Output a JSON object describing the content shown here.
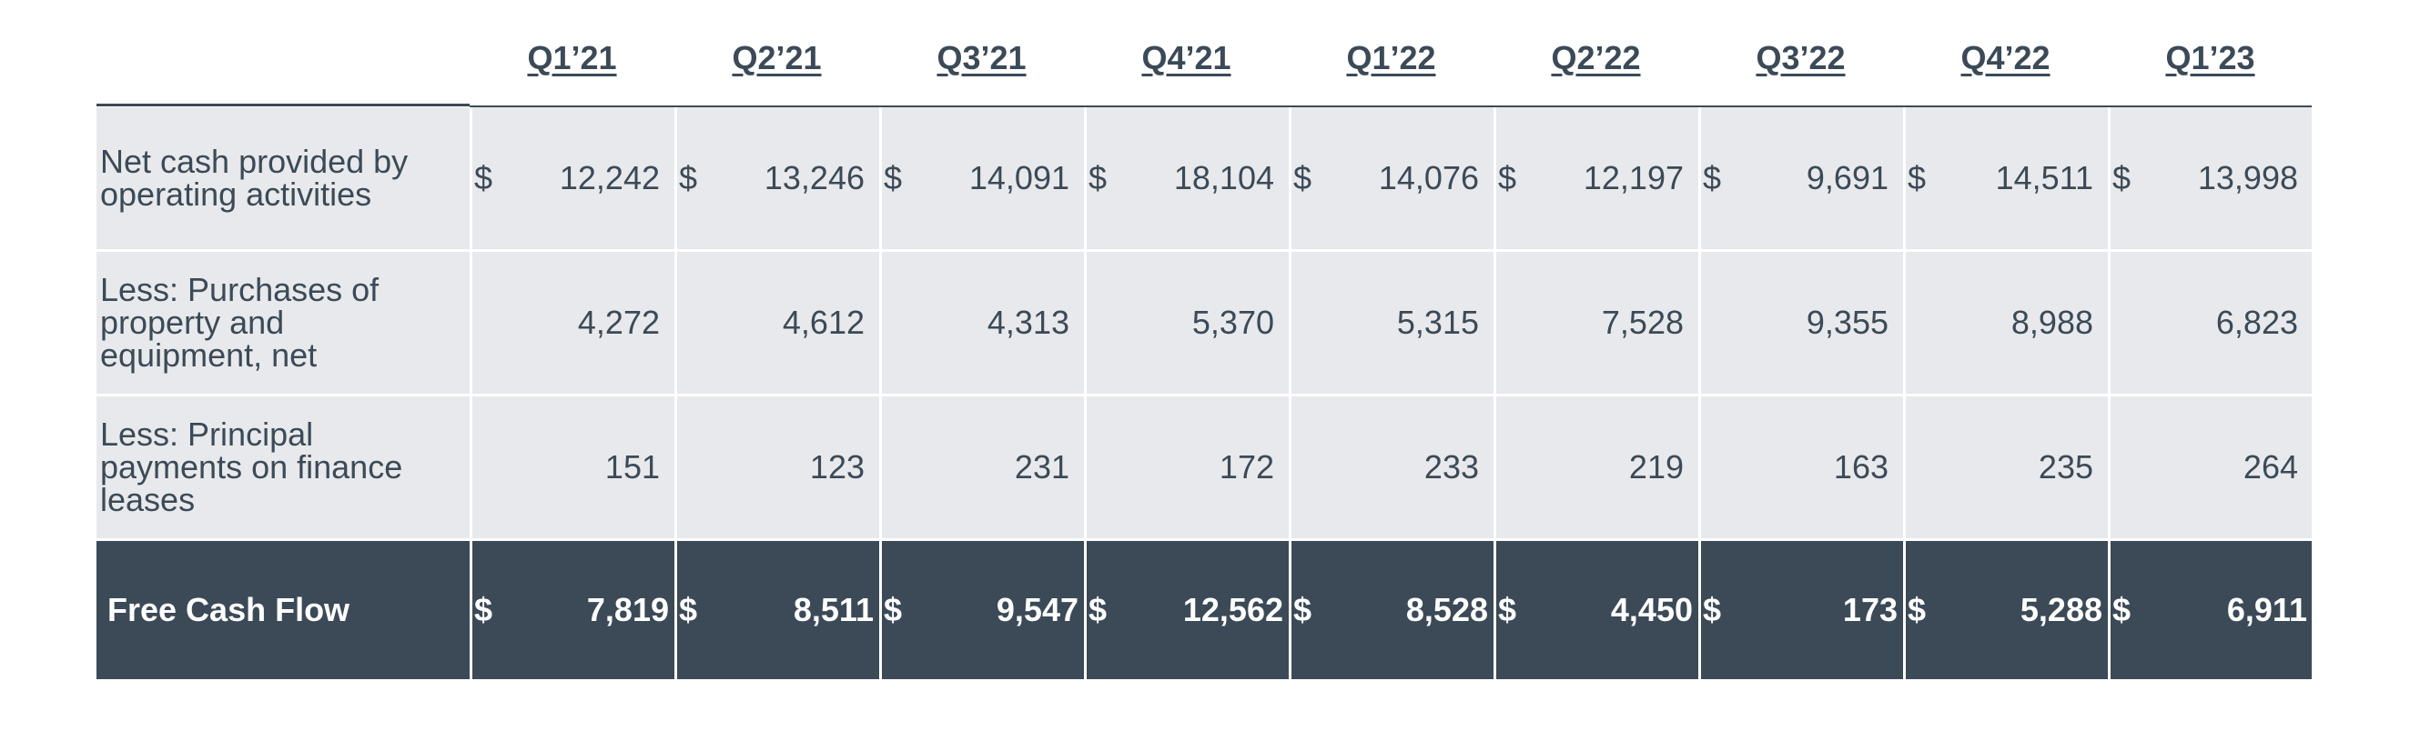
{
  "columns": [
    "Q1’21",
    "Q2’21",
    "Q3’21",
    "Q4’21",
    "Q1’22",
    "Q2’22",
    "Q3’22",
    "Q4’22",
    "Q1’23"
  ],
  "currency_symbol": "$",
  "rows": [
    {
      "label": "Net cash provided by operating activities",
      "label_lines": [
        "Net cash provided by",
        "operating activities"
      ],
      "show_dollar": true,
      "values": [
        "12,242",
        "13,246",
        "14,091",
        "18,104",
        "14,076",
        "12,197",
        "9,691",
        "14,511",
        "13,998"
      ]
    },
    {
      "label": "Less: Purchases of property and equipment, net",
      "label_lines": [
        "Less: Purchases of",
        "property and",
        "equipment, net"
      ],
      "show_dollar": false,
      "values": [
        "4,272",
        "4,612",
        "4,313",
        "5,370",
        "5,315",
        "7,528",
        "9,355",
        "8,988",
        "6,823"
      ]
    },
    {
      "label": "Less: Principal payments on finance leases",
      "label_lines": [
        "Less: Principal",
        "payments on finance",
        "leases"
      ],
      "show_dollar": false,
      "values": [
        "151",
        "123",
        "231",
        "172",
        "233",
        "219",
        "163",
        "235",
        "264"
      ]
    },
    {
      "label": "Free Cash Flow",
      "label_lines": [
        "Free Cash Flow"
      ],
      "show_dollar": true,
      "total": true,
      "values": [
        "7,819",
        "8,511",
        "9,547",
        "12,562",
        "8,528",
        "4,450",
        "173",
        "5,288",
        "6,911"
      ]
    }
  ],
  "colors": {
    "text": "#3c4a57",
    "row_bg": "#e8e9ec",
    "total_bg": "#3c4a57",
    "total_text": "#ffffff"
  }
}
